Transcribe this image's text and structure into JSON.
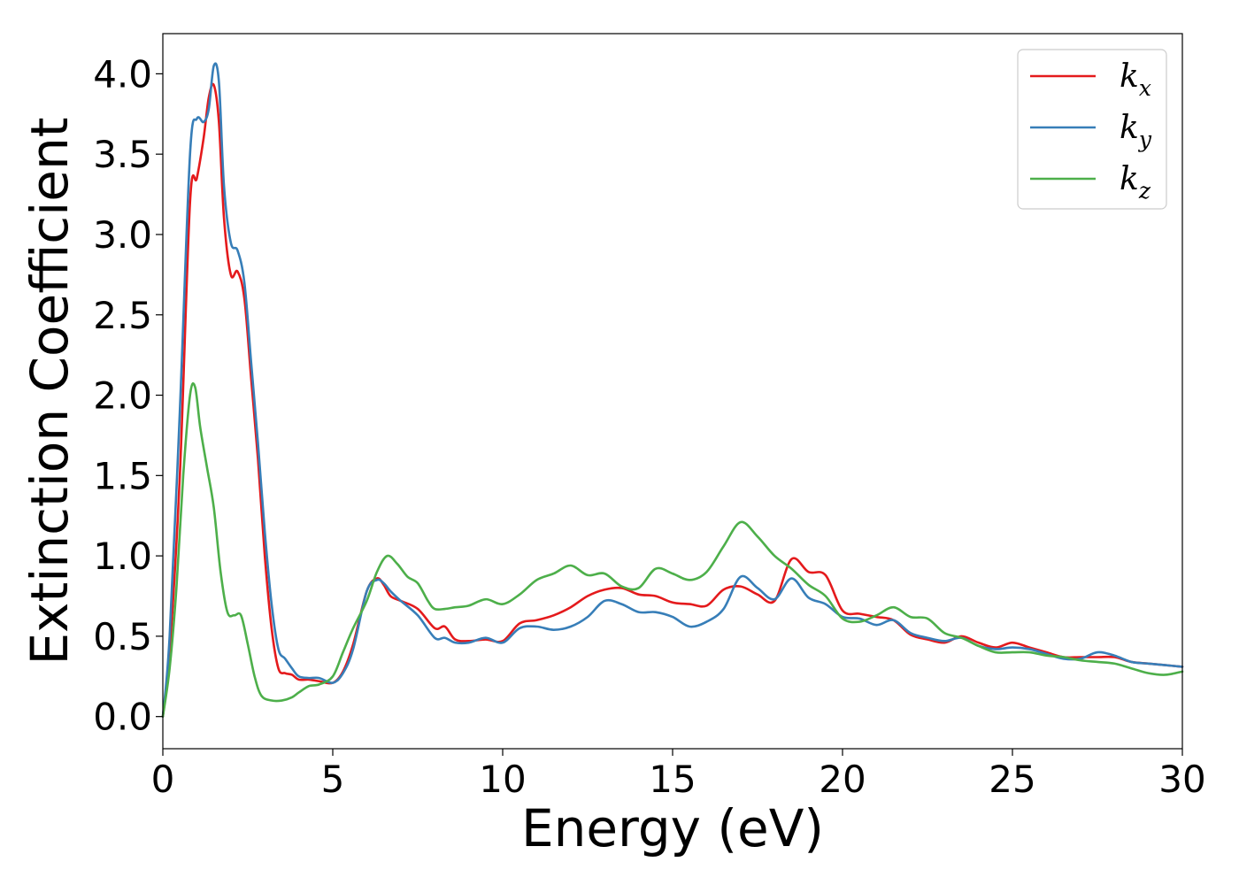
{
  "chart_data": {
    "type": "line",
    "title": "",
    "xlabel": "Energy (eV)",
    "ylabel": "Extinction Coefficient",
    "xlim": [
      0,
      30
    ],
    "ylim": [
      -0.2,
      4.25
    ],
    "xticks": [
      0,
      5,
      10,
      15,
      20,
      25,
      30
    ],
    "xtick_labels": [
      "0",
      "5",
      "10",
      "15",
      "20",
      "25",
      "30"
    ],
    "yticks": [
      0.0,
      0.5,
      1.0,
      1.5,
      2.0,
      2.5,
      3.0,
      3.5,
      4.0
    ],
    "ytick_labels": [
      "0.0",
      "0.5",
      "1.0",
      "1.5",
      "2.0",
      "2.5",
      "3.0",
      "3.5",
      "4.0"
    ],
    "grid": false,
    "legend_position": "top-right",
    "series": [
      {
        "name": "kx",
        "name_main": "k",
        "name_sub": "x",
        "color": "#e41a1c",
        "x": [
          0,
          0.2,
          0.5,
          0.8,
          1.0,
          1.2,
          1.35,
          1.5,
          1.65,
          1.8,
          2.0,
          2.2,
          2.4,
          2.6,
          2.8,
          3.0,
          3.2,
          3.4,
          3.6,
          3.8,
          4.0,
          4.3,
          4.6,
          5.0,
          5.3,
          5.6,
          6.0,
          6.3,
          6.5,
          6.7,
          7.0,
          7.5,
          8.0,
          8.3,
          8.6,
          9.0,
          9.5,
          10.0,
          10.5,
          11.0,
          11.5,
          12.0,
          12.5,
          13.0,
          13.5,
          14.0,
          14.5,
          15.0,
          15.5,
          16.0,
          16.5,
          17.0,
          17.5,
          18.0,
          18.5,
          19.0,
          19.5,
          20.0,
          20.5,
          21.0,
          21.5,
          22.0,
          22.5,
          23.0,
          23.5,
          24.0,
          24.5,
          25.0,
          25.5,
          26.0,
          26.5,
          27.0,
          27.5,
          28.0,
          28.5,
          29.0,
          29.5,
          30.0
        ],
        "y": [
          0.0,
          0.4,
          1.5,
          3.2,
          3.35,
          3.6,
          3.85,
          3.93,
          3.7,
          3.1,
          2.75,
          2.77,
          2.6,
          2.1,
          1.6,
          1.0,
          0.55,
          0.3,
          0.27,
          0.26,
          0.23,
          0.23,
          0.22,
          0.21,
          0.28,
          0.45,
          0.78,
          0.86,
          0.82,
          0.75,
          0.72,
          0.67,
          0.55,
          0.56,
          0.48,
          0.47,
          0.48,
          0.47,
          0.58,
          0.6,
          0.63,
          0.68,
          0.75,
          0.79,
          0.8,
          0.76,
          0.75,
          0.71,
          0.7,
          0.69,
          0.79,
          0.81,
          0.76,
          0.72,
          0.98,
          0.9,
          0.88,
          0.66,
          0.64,
          0.62,
          0.6,
          0.51,
          0.48,
          0.46,
          0.5,
          0.46,
          0.43,
          0.46,
          0.43,
          0.4,
          0.37,
          0.37,
          0.37,
          0.37,
          0.34,
          0.33,
          0.32,
          0.31
        ]
      },
      {
        "name": "ky",
        "name_main": "k",
        "name_sub": "y",
        "color": "#377eb8",
        "x": [
          0,
          0.2,
          0.5,
          0.8,
          1.0,
          1.2,
          1.35,
          1.5,
          1.65,
          1.8,
          2.0,
          2.2,
          2.4,
          2.6,
          2.8,
          3.0,
          3.2,
          3.4,
          3.6,
          3.8,
          4.0,
          4.3,
          4.6,
          5.0,
          5.3,
          5.6,
          6.0,
          6.3,
          6.5,
          6.7,
          7.0,
          7.5,
          8.0,
          8.3,
          8.6,
          9.0,
          9.5,
          10.0,
          10.5,
          11.0,
          11.5,
          12.0,
          12.5,
          13.0,
          13.5,
          14.0,
          14.5,
          15.0,
          15.5,
          16.0,
          16.5,
          17.0,
          17.5,
          18.0,
          18.5,
          19.0,
          19.5,
          20.0,
          20.5,
          21.0,
          21.5,
          22.0,
          22.5,
          23.0,
          23.5,
          24.0,
          24.5,
          25.0,
          25.5,
          26.0,
          26.5,
          27.0,
          27.5,
          28.0,
          28.5,
          29.0,
          29.5,
          30.0
        ],
        "y": [
          0.0,
          0.5,
          1.9,
          3.5,
          3.72,
          3.7,
          3.78,
          4.05,
          3.95,
          3.3,
          2.95,
          2.9,
          2.7,
          2.2,
          1.7,
          1.15,
          0.7,
          0.42,
          0.36,
          0.3,
          0.25,
          0.24,
          0.24,
          0.21,
          0.27,
          0.42,
          0.78,
          0.85,
          0.83,
          0.78,
          0.72,
          0.63,
          0.49,
          0.49,
          0.46,
          0.46,
          0.49,
          0.46,
          0.55,
          0.56,
          0.54,
          0.56,
          0.62,
          0.72,
          0.7,
          0.65,
          0.65,
          0.62,
          0.56,
          0.59,
          0.67,
          0.87,
          0.8,
          0.73,
          0.86,
          0.74,
          0.7,
          0.62,
          0.61,
          0.57,
          0.6,
          0.52,
          0.49,
          0.47,
          0.49,
          0.44,
          0.42,
          0.43,
          0.42,
          0.39,
          0.36,
          0.36,
          0.4,
          0.38,
          0.34,
          0.33,
          0.32,
          0.31
        ]
      },
      {
        "name": "kz",
        "name_main": "k",
        "name_sub": "z",
        "color": "#4daf4a",
        "x": [
          0,
          0.2,
          0.4,
          0.6,
          0.8,
          0.95,
          1.1,
          1.3,
          1.5,
          1.7,
          1.9,
          2.1,
          2.3,
          2.5,
          2.7,
          2.9,
          3.2,
          3.5,
          3.8,
          4.0,
          4.3,
          4.6,
          5.0,
          5.3,
          5.6,
          6.0,
          6.3,
          6.6,
          6.9,
          7.2,
          7.5,
          7.8,
          8.0,
          8.3,
          8.6,
          9.0,
          9.5,
          10.0,
          10.5,
          11.0,
          11.5,
          12.0,
          12.5,
          13.0,
          13.5,
          14.0,
          14.5,
          15.0,
          15.5,
          16.0,
          16.5,
          17.0,
          17.5,
          18.0,
          18.5,
          19.0,
          19.5,
          20.0,
          20.5,
          21.0,
          21.5,
          22.0,
          22.5,
          23.0,
          23.5,
          24.0,
          24.5,
          25.0,
          25.5,
          26.0,
          26.5,
          27.0,
          27.5,
          28.0,
          28.5,
          29.0,
          29.5,
          30.0
        ],
        "y": [
          0.0,
          0.3,
          0.8,
          1.5,
          2.0,
          2.05,
          1.8,
          1.55,
          1.3,
          0.9,
          0.65,
          0.63,
          0.63,
          0.45,
          0.25,
          0.13,
          0.1,
          0.1,
          0.12,
          0.15,
          0.19,
          0.2,
          0.25,
          0.4,
          0.55,
          0.72,
          0.9,
          1.0,
          0.95,
          0.87,
          0.83,
          0.72,
          0.67,
          0.67,
          0.68,
          0.69,
          0.73,
          0.7,
          0.76,
          0.85,
          0.89,
          0.94,
          0.88,
          0.89,
          0.81,
          0.8,
          0.92,
          0.89,
          0.85,
          0.9,
          1.06,
          1.21,
          1.12,
          1.0,
          0.92,
          0.82,
          0.75,
          0.61,
          0.59,
          0.63,
          0.68,
          0.62,
          0.61,
          0.52,
          0.49,
          0.44,
          0.4,
          0.4,
          0.4,
          0.38,
          0.37,
          0.35,
          0.34,
          0.33,
          0.3,
          0.27,
          0.26,
          0.28
        ]
      }
    ]
  }
}
